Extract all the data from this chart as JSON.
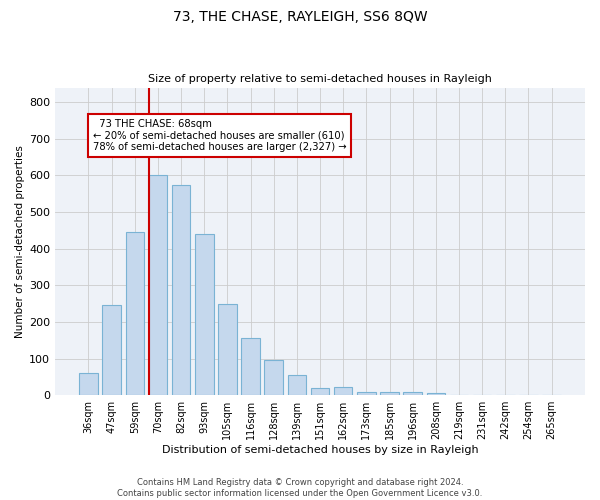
{
  "title": "73, THE CHASE, RAYLEIGH, SS6 8QW",
  "subtitle": "Size of property relative to semi-detached houses in Rayleigh",
  "xlabel": "Distribution of semi-detached houses by size in Rayleigh",
  "ylabel": "Number of semi-detached properties",
  "categories": [
    "36sqm",
    "47sqm",
    "59sqm",
    "70sqm",
    "82sqm",
    "93sqm",
    "105sqm",
    "116sqm",
    "128sqm",
    "139sqm",
    "151sqm",
    "162sqm",
    "173sqm",
    "185sqm",
    "196sqm",
    "208sqm",
    "219sqm",
    "231sqm",
    "242sqm",
    "254sqm",
    "265sqm"
  ],
  "values": [
    60,
    245,
    445,
    600,
    575,
    440,
    250,
    155,
    95,
    55,
    20,
    22,
    10,
    10,
    8,
    5,
    0,
    0,
    0,
    0,
    0
  ],
  "bar_color": "#c5d8ed",
  "bar_edge_color": "#7ab3d4",
  "property_label": "73 THE CHASE: 68sqm",
  "pct_smaller": 20,
  "n_smaller": 610,
  "pct_larger": 78,
  "n_larger": 2327,
  "vline_color": "#cc0000",
  "annotation_box_color": "#cc0000",
  "ylim": [
    0,
    840
  ],
  "yticks": [
    0,
    100,
    200,
    300,
    400,
    500,
    600,
    700,
    800
  ],
  "grid_color": "#cccccc",
  "bg_color": "#eef2f8",
  "footer_line1": "Contains HM Land Registry data © Crown copyright and database right 2024.",
  "footer_line2": "Contains public sector information licensed under the Open Government Licence v3.0."
}
